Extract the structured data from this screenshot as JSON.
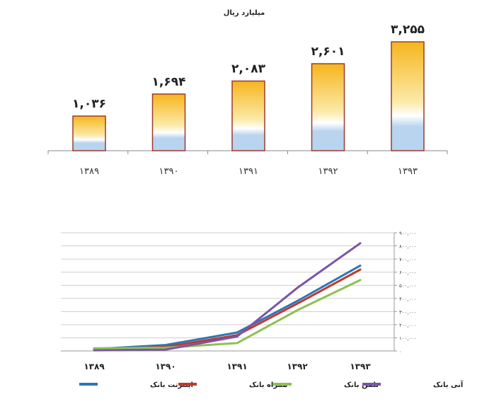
{
  "chart_data": [
    {
      "type": "bar",
      "title": "",
      "subtitle": "میلیارد ریال",
      "categories": [
        "۱۳۸۹",
        "۱۳۹۰",
        "۱۳۹۱",
        "۱۳۹۲",
        "۱۳۹۳"
      ],
      "values": [
        1036,
        1694,
        2083,
        2601,
        3255
      ],
      "value_labels": [
        "۱,۰۳۶",
        "۱,۶۹۴",
        "۲,۰۸۳",
        "۲,۶۰۱",
        "۳,۲۵۵"
      ],
      "ylim": [
        0,
        3300
      ],
      "grid": false,
      "colors": {
        "top": "#f6b51d",
        "middle": "#fbeaa8",
        "bottom": "#b8d4ee",
        "border": "#9c3a2e"
      }
    },
    {
      "type": "line",
      "categories": [
        "۱۳۸۹",
        "۱۳۹۰",
        "۱۳۹۱",
        "۱۳۹۲",
        "۱۳۹۳"
      ],
      "ylim": [
        0,
        900000
      ],
      "yticks": [
        0,
        100000,
        200000,
        300000,
        400000,
        500000,
        600000,
        700000,
        800000,
        900000
      ],
      "ytick_labels": [
        "۰",
        "۱۰۰,۰۰۰",
        "۲۰۰,۰۰۰",
        "۳۰۰,۰۰۰",
        "۴۰۰,۰۰۰",
        "۵۰۰,۰۰۰",
        "۶۰۰,۰۰۰",
        "۷۰۰,۰۰۰",
        "۸۰۰,۰۰۰",
        "۹۰۰,۰۰۰"
      ],
      "grid": true,
      "legend_position": "bottom",
      "series": [
        {
          "name": "اینترنت بانک",
          "color": "#2e75b6",
          "values": [
            15000,
            45000,
            140000,
            380000,
            650000
          ]
        },
        {
          "name": "همراه بانک",
          "color": "#c0392b",
          "values": [
            12000,
            30000,
            120000,
            360000,
            620000
          ]
        },
        {
          "name": "تلفن بانک",
          "color": "#8dc152",
          "values": [
            20000,
            25000,
            60000,
            310000,
            540000
          ]
        },
        {
          "name": "آنی بانک",
          "color": "#7b55a6",
          "values": [
            5000,
            10000,
            110000,
            480000,
            820000
          ]
        }
      ]
    }
  ]
}
